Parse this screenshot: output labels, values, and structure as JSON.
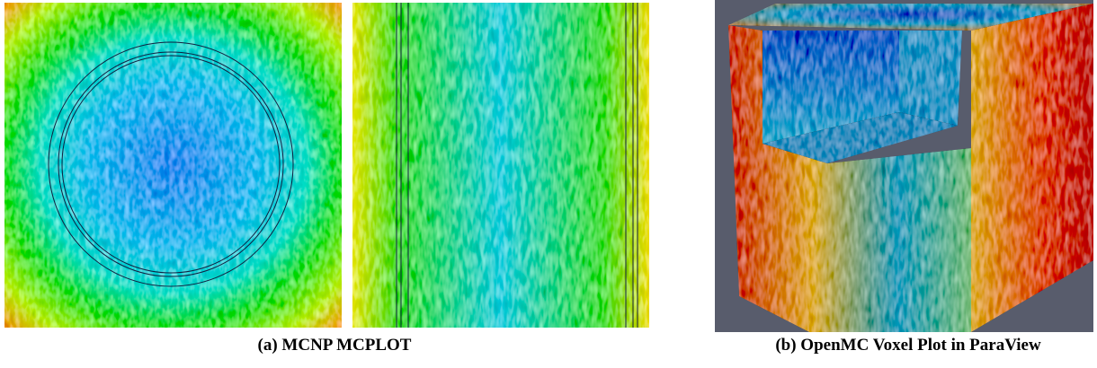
{
  "captions": [
    "(a) MCNP MCPLOT",
    "(b) OpenMC Voxel Plot in ParaView"
  ]
}
